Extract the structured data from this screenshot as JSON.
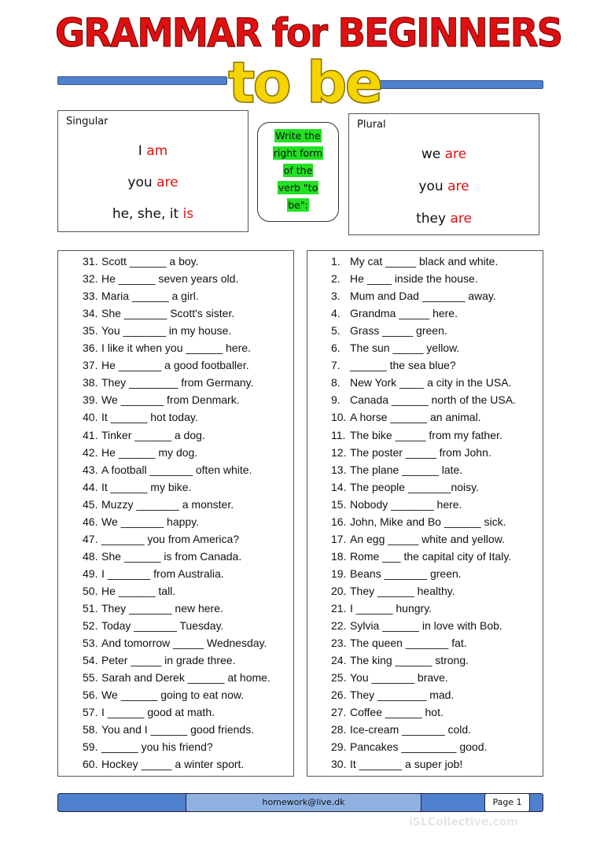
{
  "header": {
    "title": "GRAMMAR for BEGINNERS",
    "subtitle": "to be"
  },
  "singular": {
    "label": "Singular",
    "forms": [
      {
        "subject": "I",
        "verb": "am"
      },
      {
        "subject": "you",
        "verb": "are"
      },
      {
        "subject": "he, she, it",
        "verb": "is"
      }
    ]
  },
  "instruction": {
    "lines": [
      "Write the",
      "right form",
      "of the",
      "verb \"to",
      "be\":"
    ]
  },
  "plural": {
    "label": "Plural",
    "forms": [
      {
        "subject": "we",
        "verb": "are"
      },
      {
        "subject": "you",
        "verb": "are"
      },
      {
        "subject": "they",
        "verb": "are"
      }
    ]
  },
  "left_list": [
    {
      "num": "31.",
      "text": "Scott ______ a boy."
    },
    {
      "num": "32.",
      "text": "He ______ seven years old."
    },
    {
      "num": "33.",
      "text": "Maria ______ a girl."
    },
    {
      "num": "34.",
      "text": "She _______ Scott's sister."
    },
    {
      "num": "35.",
      "text": "You _______ in my house."
    },
    {
      "num": "36.",
      "text": "I like it when you ______ here."
    },
    {
      "num": "37.",
      "text": "He _______ a good footballer."
    },
    {
      "num": "38.",
      "text": "They ________ from Germany."
    },
    {
      "num": "39.",
      "text": "We _______ from Denmark."
    },
    {
      "num": "40.",
      "text": "It ______ hot today."
    },
    {
      "num": "41.",
      "text": "Tinker ______ a dog."
    },
    {
      "num": "42.",
      "text": "He ______ my dog."
    },
    {
      "num": "43.",
      "text": "A football _______ often white."
    },
    {
      "num": "44.",
      "text": "It ______ my bike."
    },
    {
      "num": "45.",
      "text": "Muzzy _______ a monster."
    },
    {
      "num": "46.",
      "text": "We _______ happy."
    },
    {
      "num": "47.",
      "text": "_______ you from America?"
    },
    {
      "num": "48.",
      "text": "She ______ is from Canada."
    },
    {
      "num": "49.",
      "text": "I _______ from Australia."
    },
    {
      "num": "50.",
      "text": "He ______ tall."
    },
    {
      "num": "51.",
      "text": "They _______ new here."
    },
    {
      "num": "52.",
      "text": "Today _______ Tuesday."
    },
    {
      "num": "53.",
      "text": "And tomorrow _____ Wednesday."
    },
    {
      "num": "54.",
      "text": "Peter _____ in grade three."
    },
    {
      "num": "55.",
      "text": "Sarah and Derek ______ at home."
    },
    {
      "num": "56.",
      "text": "We ______ going to eat now."
    },
    {
      "num": "57.",
      "text": "I ______ good at math."
    },
    {
      "num": "58.",
      "text": "You and I ______ good friends."
    },
    {
      "num": "59.",
      "text": "______ you his friend?"
    },
    {
      "num": "60.",
      "text": "Hockey _____ a winter sport."
    }
  ],
  "right_list": [
    {
      "num": "1.",
      "text": "My cat _____ black and white."
    },
    {
      "num": "2.",
      "text": "He ____ inside the house."
    },
    {
      "num": "3.",
      "text": "Mum and Dad _______ away."
    },
    {
      "num": "4.",
      "text": "Grandma _____ here."
    },
    {
      "num": "5.",
      "text": "Grass _____ green."
    },
    {
      "num": "6.",
      "text": "The sun _____ yellow."
    },
    {
      "num": "7.",
      "text": "______ the sea blue?"
    },
    {
      "num": "8.",
      "text": "New York ____ a city in the USA."
    },
    {
      "num": "9.",
      "text": "Canada ______ north of the USA."
    },
    {
      "num": "10.",
      "text": "A horse ______ an animal."
    },
    {
      "num": "11.",
      "text": "The bike _____ from my father."
    },
    {
      "num": "12.",
      "text": "The poster _____ from John."
    },
    {
      "num": "13.",
      "text": "The plane ______ late."
    },
    {
      "num": "14.",
      "text": "The people _______noisy."
    },
    {
      "num": "15.",
      "text": "Nobody _______ here."
    },
    {
      "num": "16.",
      "text": "John, Mike and Bo ______ sick."
    },
    {
      "num": "17.",
      "text": "An egg _____ white and yellow."
    },
    {
      "num": "18.",
      "text": "Rome ___ the capital city of Italy."
    },
    {
      "num": "19.",
      "text": "Beans _______ green."
    },
    {
      "num": "20.",
      "text": "They ______ healthy."
    },
    {
      "num": "21.",
      "text": "I ______ hungry."
    },
    {
      "num": "22.",
      "text": "Sylvia ______ in love with Bob."
    },
    {
      "num": "23.",
      "text": "The queen _______ fat."
    },
    {
      "num": "24.",
      "text": "The king ______ strong."
    },
    {
      "num": "25.",
      "text": "You _______ brave."
    },
    {
      "num": "26.",
      "text": "They ________ mad."
    },
    {
      "num": "27.",
      "text": "Coffee ______ hot."
    },
    {
      "num": "28.",
      "text": "Ice-cream _______ cold."
    },
    {
      "num": "29.",
      "text": "Pancakes _________ good."
    },
    {
      "num": "30.",
      "text": "It _______ a super job!"
    }
  ],
  "footer": {
    "email": "homework@live.dk",
    "page": "Page 1",
    "watermark": "iSLCollective.com"
  },
  "colors": {
    "title": "#e01010",
    "subtitle": "#f5d400",
    "bar": "#4f81cf",
    "highlight": "#22e022",
    "verb": "#e01010"
  }
}
